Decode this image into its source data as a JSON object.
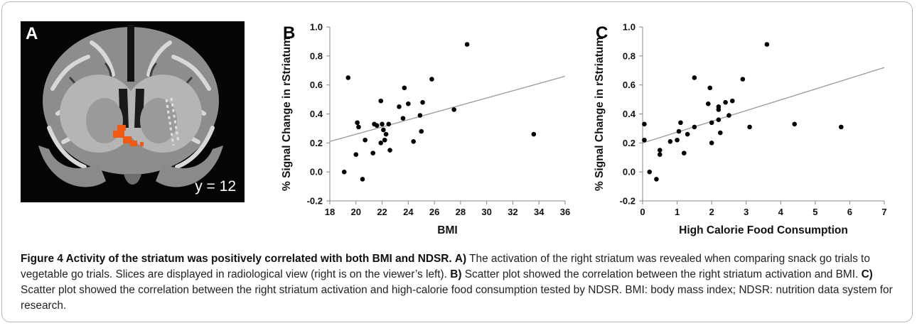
{
  "figure": {
    "panel_a": {
      "letter": "A",
      "slice_label": "y = 12"
    },
    "caption": {
      "title": "Figure 4 Activity of the striatum was positively correlated with both BMI and NDSR.",
      "a_label": "A)",
      "a_text": "The activation of the right striatum was revealed when comparing snack go trials to vegetable go trials. Slices are displayed in radiological view (right is on the viewer’s left).",
      "b_label": "B)",
      "b_text": "Scatter plot showed the correlation between the right striatum activation and BMI.",
      "c_label": "C)",
      "c_text": "Scatter plot showed the correlation between the right striatum activation and high-calorie food consumption tested by NDSR. BMI: body mass index; NDSR: nutrition data system for research."
    }
  },
  "chart_data": [
    {
      "panel": "B",
      "type": "scatter",
      "xlabel": "BMI",
      "ylabel": "% Signal Change in rStriatum",
      "xlim": [
        18,
        36
      ],
      "ylim": [
        -0.2,
        1.0
      ],
      "xticks": [
        "18",
        "20",
        "22",
        "24",
        "26",
        "28",
        "30",
        "32",
        "34",
        "36"
      ],
      "yticks": [
        "-0.2",
        "0.0",
        "0.2",
        "0.4",
        "0.6",
        "0.8",
        "1.0"
      ],
      "points": [
        [
          19.1,
          0.0
        ],
        [
          19.4,
          0.65
        ],
        [
          20.0,
          0.12
        ],
        [
          20.1,
          0.34
        ],
        [
          20.2,
          0.31
        ],
        [
          20.5,
          -0.05
        ],
        [
          20.7,
          0.22
        ],
        [
          21.3,
          0.13
        ],
        [
          21.4,
          0.33
        ],
        [
          21.6,
          0.32
        ],
        [
          21.9,
          0.2
        ],
        [
          21.9,
          0.49
        ],
        [
          22.0,
          0.33
        ],
        [
          22.1,
          0.29
        ],
        [
          22.2,
          0.22
        ],
        [
          22.3,
          0.26
        ],
        [
          22.5,
          0.33
        ],
        [
          22.6,
          0.15
        ],
        [
          23.3,
          0.45
        ],
        [
          23.6,
          0.37
        ],
        [
          23.7,
          0.58
        ],
        [
          24.0,
          0.47
        ],
        [
          24.4,
          0.21
        ],
        [
          24.9,
          0.39
        ],
        [
          25.0,
          0.28
        ],
        [
          25.1,
          0.48
        ],
        [
          25.8,
          0.64
        ],
        [
          27.5,
          0.43
        ],
        [
          28.5,
          0.88
        ],
        [
          33.6,
          0.26
        ]
      ],
      "trendline": {
        "x": [
          18,
          36
        ],
        "y": [
          0.21,
          0.66
        ]
      }
    },
    {
      "panel": "C",
      "type": "scatter",
      "xlabel": "High Calorie Food Consumption",
      "ylabel": "% Signal Change in rStriatum",
      "xlim": [
        0,
        7
      ],
      "ylim": [
        -0.2,
        1.0
      ],
      "xticks": [
        "0",
        "1",
        "2",
        "3",
        "4",
        "5",
        "6",
        "7"
      ],
      "yticks": [
        "-0.2",
        "0.0",
        "0.2",
        "0.4",
        "0.6",
        "0.8",
        "1.0"
      ],
      "points": [
        [
          0.05,
          0.33
        ],
        [
          0.05,
          0.22
        ],
        [
          0.2,
          0.0
        ],
        [
          0.4,
          -0.05
        ],
        [
          0.5,
          0.12
        ],
        [
          0.5,
          0.15
        ],
        [
          0.8,
          0.21
        ],
        [
          1.0,
          0.22
        ],
        [
          1.05,
          0.28
        ],
        [
          1.1,
          0.34
        ],
        [
          1.2,
          0.13
        ],
        [
          1.3,
          0.26
        ],
        [
          1.5,
          0.65
        ],
        [
          1.5,
          0.31
        ],
        [
          1.9,
          0.47
        ],
        [
          1.95,
          0.58
        ],
        [
          2.0,
          0.34
        ],
        [
          2.0,
          0.2
        ],
        [
          2.2,
          0.43
        ],
        [
          2.2,
          0.45
        ],
        [
          2.2,
          0.36
        ],
        [
          2.25,
          0.27
        ],
        [
          2.4,
          0.48
        ],
        [
          2.5,
          0.39
        ],
        [
          2.6,
          0.49
        ],
        [
          2.9,
          0.64
        ],
        [
          3.1,
          0.31
        ],
        [
          3.6,
          0.88
        ],
        [
          4.4,
          0.33
        ],
        [
          5.75,
          0.31
        ]
      ],
      "trendline": {
        "x": [
          0,
          7
        ],
        "y": [
          0.2,
          0.72
        ]
      }
    }
  ]
}
